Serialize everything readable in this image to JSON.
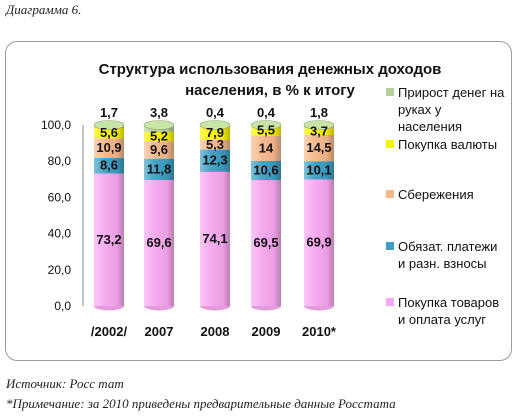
{
  "caption": "Диаграмма 6.",
  "source": "Источник: Росс тат",
  "footnote": "*Примечание: за 2010 приведены предварительные данные Росстата",
  "chart_data": {
    "type": "bar",
    "stacked": true,
    "title_line1": "Структура использования денежных доходов",
    "title_line2": "населения, в % к итогу",
    "categories": [
      "/2002/",
      "2007",
      "2008",
      "2009",
      "2010*"
    ],
    "ylim": [
      0,
      100
    ],
    "yticks": [
      "0,0",
      "20,0",
      "40,0",
      "60,0",
      "80,0",
      "100,0"
    ],
    "legend_position": "right",
    "series": [
      {
        "name": "Покупка товаров и оплата услуг",
        "color": "#f7a8f0",
        "values": [
          73.2,
          69.6,
          74.1,
          69.5,
          69.9
        ],
        "labels": [
          "73,2",
          "69,6",
          "74,1",
          "69,5",
          "69,9"
        ]
      },
      {
        "name": "Обязат. платежи и разн. взносы",
        "color": "#3c9fc4",
        "values": [
          8.6,
          11.8,
          12.3,
          10.6,
          10.1
        ],
        "labels": [
          "8,6",
          "11,8",
          "12,3",
          "10,6",
          "10,1"
        ]
      },
      {
        "name": "Сбережения",
        "color": "#f6b88a",
        "values": [
          10.9,
          9.6,
          5.3,
          14.0,
          14.5
        ],
        "labels": [
          "10,9",
          "9,6",
          "5,3",
          "14",
          "14,5"
        ]
      },
      {
        "name": "Покупка валюты",
        "color": "#f9f400",
        "values": [
          5.6,
          5.2,
          7.9,
          5.5,
          3.7
        ],
        "labels": [
          "5,6",
          "5,2",
          "7,9",
          "5,5",
          "3,7"
        ]
      },
      {
        "name": "Прирост денег на руках у населения",
        "color": "#b7cf98",
        "values": [
          1.7,
          3.8,
          0.4,
          0.4,
          1.8
        ],
        "labels": [
          "1,7",
          "3,8",
          "0,4",
          "0,4",
          "1,8"
        ]
      }
    ]
  }
}
